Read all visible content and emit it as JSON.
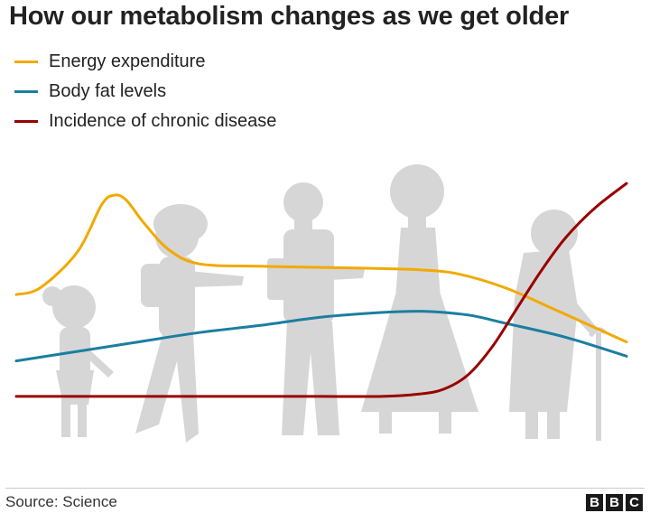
{
  "title": "How our metabolism changes as we get older",
  "legend": [
    {
      "label": "Energy expenditure",
      "color": "#f2a900"
    },
    {
      "label": "Body fat levels",
      "color": "#1b7ea0"
    },
    {
      "label": "Incidence of chronic disease",
      "color": "#990000"
    }
  ],
  "footer": {
    "source": "Source: Science",
    "logo": [
      "B",
      "B",
      "C"
    ]
  },
  "chart_data": {
    "type": "line",
    "title": "How our metabolism changes as we get older",
    "xlabel": "",
    "ylabel": "",
    "xlim": [
      0,
      100
    ],
    "ylim": [
      0,
      100
    ],
    "grid": false,
    "legend_position": "top-left",
    "background_illustration": "grey silhouettes of people from childhood to old age",
    "series": [
      {
        "name": "Energy expenditure",
        "color": "#f2a900",
        "x": [
          0,
          4,
          10,
          14,
          16,
          18,
          21,
          25,
          30,
          40,
          50,
          60,
          66,
          72,
          80,
          88,
          94,
          100
        ],
        "y": [
          48,
          51,
          66,
          86,
          90,
          88,
          78,
          67,
          61,
          60,
          59.5,
          59,
          58.5,
          57,
          51,
          42,
          35,
          28
        ]
      },
      {
        "name": "Body fat levels",
        "color": "#1b7ea0",
        "x": [
          0,
          10,
          20,
          30,
          40,
          50,
          60,
          66,
          70,
          75,
          80,
          90,
          100
        ],
        "y": [
          20,
          24,
          28,
          32,
          35,
          38.5,
          40.5,
          41,
          40.5,
          39,
          36,
          30,
          22
        ]
      },
      {
        "name": "Incidence of chronic disease",
        "color": "#990000",
        "x": [
          0,
          10,
          20,
          30,
          40,
          50,
          60,
          66,
          70,
          74,
          78,
          82,
          86,
          90,
          95,
          100
        ],
        "y": [
          5,
          5,
          5,
          5,
          5,
          5,
          5,
          6,
          8,
          14,
          26,
          42,
          58,
          72,
          85,
          95
        ]
      }
    ]
  }
}
